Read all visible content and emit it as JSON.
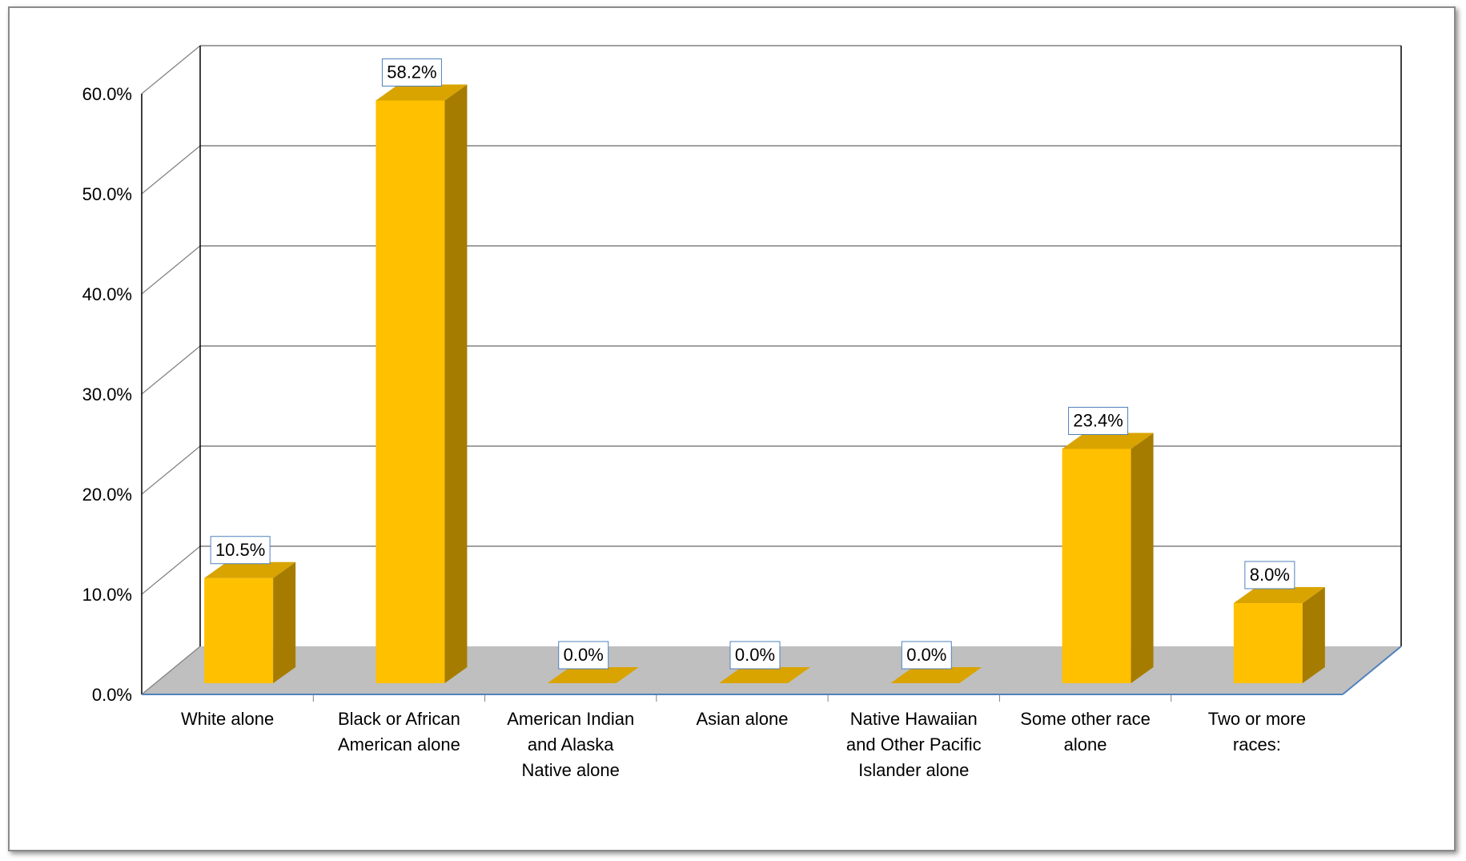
{
  "chart_data": {
    "type": "bar",
    "title": "",
    "xlabel": "",
    "ylabel": "",
    "categories": [
      [
        "White alone"
      ],
      [
        "Black or African",
        "American alone"
      ],
      [
        "American Indian",
        "and Alaska",
        "Native alone"
      ],
      [
        "Asian alone"
      ],
      [
        "Native Hawaiian",
        "and Other Pacific",
        "Islander alone"
      ],
      [
        "Some other race",
        "alone"
      ],
      [
        "Two or more",
        "races:"
      ]
    ],
    "values": [
      10.5,
      58.2,
      0.0,
      0.0,
      0.0,
      23.4,
      8.0
    ],
    "data_labels": [
      "10.5%",
      "58.2%",
      "0.0%",
      "0.0%",
      "0.0%",
      "23.4%",
      "8.0%"
    ],
    "ylim": [
      0,
      60
    ],
    "y_ticks": [
      "0.0%",
      "10.0%",
      "20.0%",
      "30.0%",
      "40.0%",
      "50.0%",
      "60.0%"
    ],
    "grid": true,
    "three_d": true,
    "legend": "none",
    "colors": {
      "bar_front": "#FFC000",
      "bar_side": "#A67C00",
      "bar_top": "#D9A400",
      "floor": "#BFBFBF",
      "gridline": "#808080",
      "label_border": "#4F81BD"
    }
  }
}
